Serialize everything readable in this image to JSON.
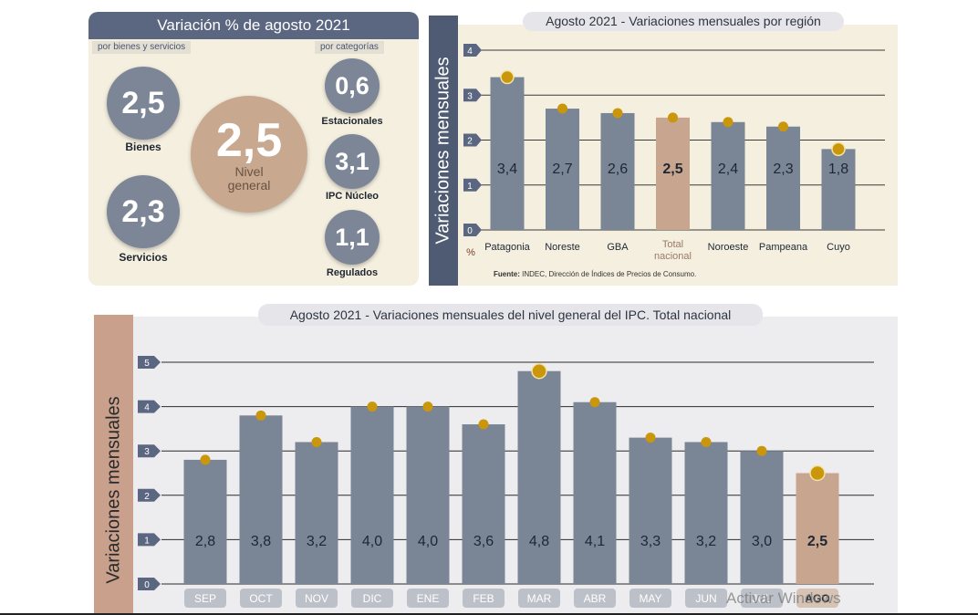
{
  "summary": {
    "title": "Variación % de agosto 2021",
    "tag_left": "por bienes y servicios",
    "tag_right": "por categorías",
    "bienes": {
      "value": "2,5",
      "label": "Bienes"
    },
    "servicios": {
      "value": "2,3",
      "label": "Servicios"
    },
    "nivel_general": {
      "value": "2,5",
      "label_line1": "Nivel",
      "label_line2": "general"
    },
    "estacionales": {
      "value": "0,6",
      "label": "Estacionales"
    },
    "nucleo": {
      "value": "3,1",
      "label": "IPC Núcleo"
    },
    "regulados": {
      "value": "1,1",
      "label": "Regulados"
    }
  },
  "chart_data": [
    {
      "type": "bar",
      "title": "Agosto 2021 - Variaciones mensuales por región",
      "ylabel": "Variaciones  mensuales",
      "yunit": "%",
      "ylim": [
        0,
        4
      ],
      "yticks": [
        "0",
        "1",
        "2",
        "3",
        "4"
      ],
      "categories": [
        "Patagonia",
        "Noreste",
        "GBA",
        "Total nacional",
        "Noroeste",
        "Pampeana",
        "Cuyo"
      ],
      "values": [
        3.4,
        2.7,
        2.6,
        2.5,
        2.4,
        2.3,
        1.8
      ],
      "value_labels": [
        "3,4",
        "2,7",
        "2,6",
        "2,5",
        "2,4",
        "2,3",
        "1,8"
      ],
      "highlight": "Total nacional",
      "source_label": "Fuente:",
      "source_text": "INDEC, Dirección de Índices de Precios de Consumo.",
      "colors": {
        "bar": "#7a8596",
        "highlight": "#c7a58e",
        "marker": "#c9960c",
        "background": "#f5efdf"
      }
    },
    {
      "type": "bar",
      "title": "Agosto 2021 - Variaciones mensuales del nivel general del IPC.  Total nacional",
      "ylabel": "Variaciones mensuales",
      "ylim": [
        0,
        5
      ],
      "yticks": [
        "0",
        "1",
        "2",
        "3",
        "4",
        "5"
      ],
      "categories": [
        "SEP",
        "OCT",
        "NOV",
        "DIC",
        "ENE",
        "FEB",
        "MAR",
        "ABR",
        "MAY",
        "JUN",
        "JUL",
        "AGO"
      ],
      "values": [
        2.8,
        3.8,
        3.2,
        4.0,
        4.0,
        3.6,
        4.8,
        4.1,
        3.3,
        3.2,
        3.0,
        2.5
      ],
      "value_labels": [
        "2,8",
        "3,8",
        "3,2",
        "4,0",
        "4,0",
        "3,6",
        "4,8",
        "4,1",
        "3,3",
        "3,2",
        "3,0",
        "2,5"
      ],
      "highlight": "AGO",
      "colors": {
        "bar": "#7a8596",
        "highlight": "#c7a58e",
        "marker": "#c9960c",
        "background": "#ededf0"
      }
    }
  ],
  "watermark": "Activar Windows"
}
